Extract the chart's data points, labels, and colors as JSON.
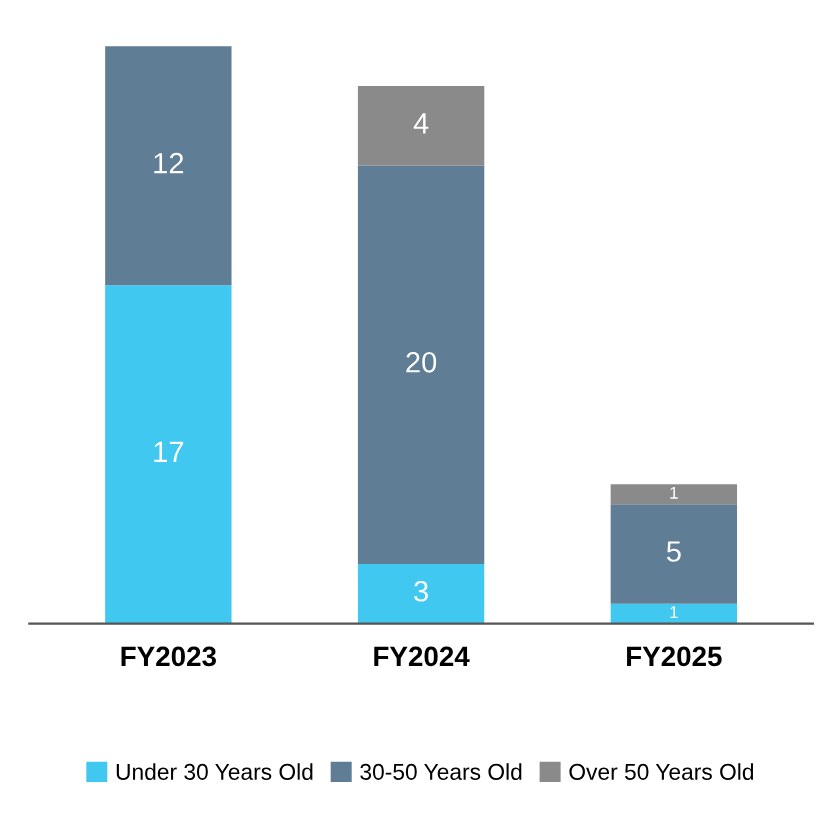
{
  "chart_data": {
    "type": "bar",
    "stacked": true,
    "categories": [
      "FY2023",
      "FY2024",
      "FY2025"
    ],
    "series": [
      {
        "name": "Under 30 Years Old",
        "color": "#40c8f0",
        "values": [
          17,
          3,
          1
        ]
      },
      {
        "name": "30-50 Years Old",
        "color": "#5f7d95",
        "values": [
          12,
          20,
          5
        ]
      },
      {
        "name": "Over 50 Years Old",
        "color": "#8a8a8a",
        "values": [
          null,
          4,
          1
        ]
      }
    ],
    "data_labels": true,
    "legend": "bottom",
    "grid": false
  }
}
